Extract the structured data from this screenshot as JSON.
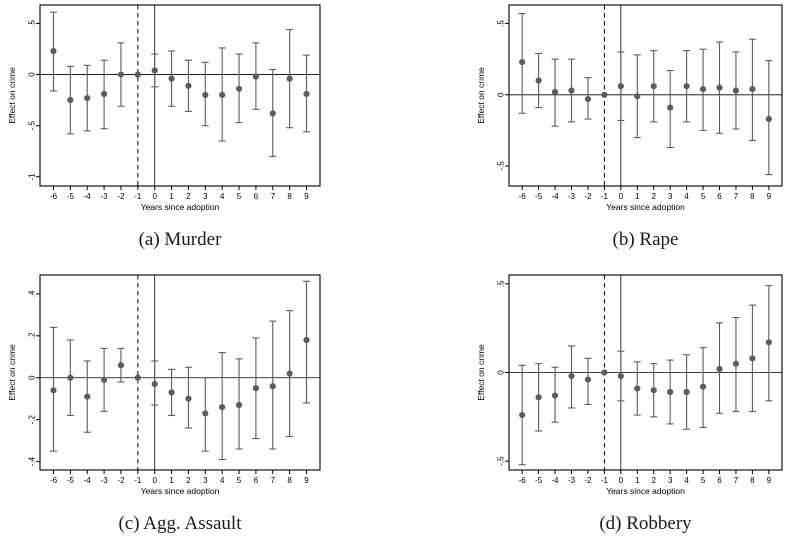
{
  "style": {
    "marker_color": "#5c5c5c",
    "errorbar_color": "#5c5c5c",
    "axis_color": "#000000",
    "background": "#ffffff"
  },
  "chart_data": [
    {
      "type": "scatter",
      "subtype": "errorbar-event-study",
      "caption": "(a) Murder",
      "xlabel": "Years since adoption",
      "ylabel": "Effect on crime",
      "x": [
        -6,
        -5,
        -4,
        -3,
        -2,
        -1,
        0,
        1,
        2,
        3,
        4,
        5,
        6,
        7,
        8,
        9
      ],
      "estimates": [
        0.23,
        -0.25,
        -0.23,
        -0.19,
        0.0,
        0.0,
        0.04,
        -0.04,
        -0.11,
        -0.2,
        -0.2,
        -0.14,
        -0.02,
        -0.38,
        -0.04,
        -0.19
      ],
      "ci_low": [
        -0.16,
        -0.58,
        -0.55,
        -0.53,
        -0.31,
        null,
        -0.12,
        -0.31,
        -0.36,
        -0.5,
        -0.65,
        -0.47,
        -0.34,
        -0.8,
        -0.52,
        -0.56
      ],
      "ci_high": [
        0.61,
        0.08,
        0.09,
        0.14,
        0.31,
        null,
        0.2,
        0.23,
        0.14,
        0.12,
        0.26,
        0.2,
        0.31,
        0.05,
        0.44,
        0.19
      ],
      "reference_x": -1,
      "vline_dashed_x": -1,
      "vline_solid_x": 0,
      "hline_y": 0,
      "xlim": [
        -6.8,
        9.8
      ],
      "ylim": [
        -1.09,
        0.68
      ],
      "xticks": [
        -6,
        -5,
        -4,
        -3,
        -2,
        -1,
        0,
        1,
        2,
        3,
        4,
        5,
        6,
        7,
        8,
        9
      ],
      "yticks": [
        0.5,
        0,
        -0.5,
        -1
      ],
      "ytick_labels": [
        ".5",
        "0",
        "-.5",
        "-1"
      ],
      "grid": false,
      "legend": null
    },
    {
      "type": "scatter",
      "subtype": "errorbar-event-study",
      "caption": "(b) Rape",
      "xlabel": "Years since adoption",
      "ylabel": "Effect on crime",
      "x": [
        -6,
        -5,
        -4,
        -3,
        -2,
        -1,
        0,
        1,
        2,
        3,
        4,
        5,
        6,
        7,
        8,
        9
      ],
      "estimates": [
        0.23,
        0.1,
        0.02,
        0.03,
        -0.03,
        0.0,
        0.06,
        -0.01,
        0.06,
        -0.09,
        0.06,
        0.04,
        0.05,
        0.03,
        0.04,
        -0.17
      ],
      "ci_low": [
        -0.13,
        -0.09,
        -0.22,
        -0.19,
        -0.17,
        null,
        -0.18,
        -0.3,
        -0.19,
        -0.37,
        -0.19,
        -0.25,
        -0.27,
        -0.24,
        -0.32,
        -0.56
      ],
      "ci_high": [
        0.57,
        0.29,
        0.25,
        0.25,
        0.12,
        null,
        0.3,
        0.28,
        0.31,
        0.17,
        0.31,
        0.32,
        0.37,
        0.3,
        0.39,
        0.24
      ],
      "reference_x": -1,
      "vline_dashed_x": -1,
      "vline_solid_x": 0,
      "hline_y": 0,
      "xlim": [
        -6.8,
        9.8
      ],
      "ylim": [
        -0.64,
        0.63
      ],
      "xticks": [
        -6,
        -5,
        -4,
        -3,
        -2,
        -1,
        0,
        1,
        2,
        3,
        4,
        5,
        6,
        7,
        8,
        9
      ],
      "yticks": [
        0.5,
        0,
        -0.5
      ],
      "ytick_labels": [
        ".5",
        "0",
        "-.5"
      ],
      "grid": false,
      "legend": null
    },
    {
      "type": "scatter",
      "subtype": "errorbar-event-study",
      "caption": "(c) Agg. Assault",
      "xlabel": "Years since adoption",
      "ylabel": "Effect on crime",
      "x": [
        -6,
        -5,
        -4,
        -3,
        -2,
        -1,
        0,
        1,
        2,
        3,
        4,
        5,
        6,
        7,
        8,
        9
      ],
      "estimates": [
        -0.06,
        0.0,
        -0.09,
        -0.01,
        0.06,
        0.0,
        -0.03,
        -0.07,
        -0.1,
        -0.17,
        -0.14,
        -0.13,
        -0.05,
        -0.04,
        0.02,
        0.18
      ],
      "ci_low": [
        -0.35,
        -0.18,
        -0.26,
        -0.16,
        -0.02,
        null,
        -0.13,
        -0.18,
        -0.24,
        -0.35,
        -0.39,
        -0.34,
        -0.29,
        -0.34,
        -0.28,
        -0.12
      ],
      "ci_high": [
        0.24,
        0.18,
        0.08,
        0.14,
        0.14,
        null,
        0.08,
        0.04,
        0.05,
        0.0,
        0.12,
        0.09,
        0.19,
        0.27,
        0.32,
        0.46
      ],
      "reference_x": -1,
      "vline_dashed_x": -1,
      "vline_solid_x": 0,
      "hline_y": 0,
      "xlim": [
        -6.8,
        9.8
      ],
      "ylim": [
        -0.44,
        0.49
      ],
      "xticks": [
        -6,
        -5,
        -4,
        -3,
        -2,
        -1,
        0,
        1,
        2,
        3,
        4,
        5,
        6,
        7,
        8,
        9
      ],
      "yticks": [
        0.4,
        0.2,
        0,
        -0.2,
        -0.4
      ],
      "ytick_labels": [
        ".4",
        ".2",
        "0",
        "-.2",
        "-.4"
      ],
      "grid": false,
      "legend": null
    },
    {
      "type": "scatter",
      "subtype": "errorbar-event-study",
      "caption": "(d) Robbery",
      "xlabel": "Years since adoption",
      "ylabel": "Effect on crime",
      "x": [
        -6,
        -5,
        -4,
        -3,
        -2,
        -1,
        0,
        1,
        2,
        3,
        4,
        5,
        6,
        7,
        8,
        9
      ],
      "estimates": [
        -0.24,
        -0.14,
        -0.13,
        -0.02,
        -0.04,
        0.0,
        -0.02,
        -0.09,
        -0.1,
        -0.11,
        -0.11,
        -0.08,
        0.02,
        0.05,
        0.08,
        0.17
      ],
      "ci_low": [
        -0.52,
        -0.33,
        -0.28,
        -0.2,
        -0.18,
        null,
        -0.16,
        -0.24,
        -0.25,
        -0.29,
        -0.32,
        -0.31,
        -0.23,
        -0.22,
        -0.22,
        -0.16
      ],
      "ci_high": [
        0.04,
        0.05,
        0.03,
        0.15,
        0.08,
        null,
        0.12,
        0.06,
        0.05,
        0.07,
        0.1,
        0.14,
        0.28,
        0.31,
        0.38,
        0.49
      ],
      "reference_x": -1,
      "vline_dashed_x": -1,
      "vline_solid_x": 0,
      "hline_y": 0,
      "xlim": [
        -6.8,
        9.8
      ],
      "ylim": [
        -0.55,
        0.55
      ],
      "xticks": [
        -6,
        -5,
        -4,
        -3,
        -2,
        -1,
        0,
        1,
        2,
        3,
        4,
        5,
        6,
        7,
        8,
        9
      ],
      "yticks": [
        0.5,
        0,
        -0.5
      ],
      "ytick_labels": [
        ".5",
        "0",
        "-.5"
      ],
      "grid": false,
      "legend": null
    }
  ]
}
